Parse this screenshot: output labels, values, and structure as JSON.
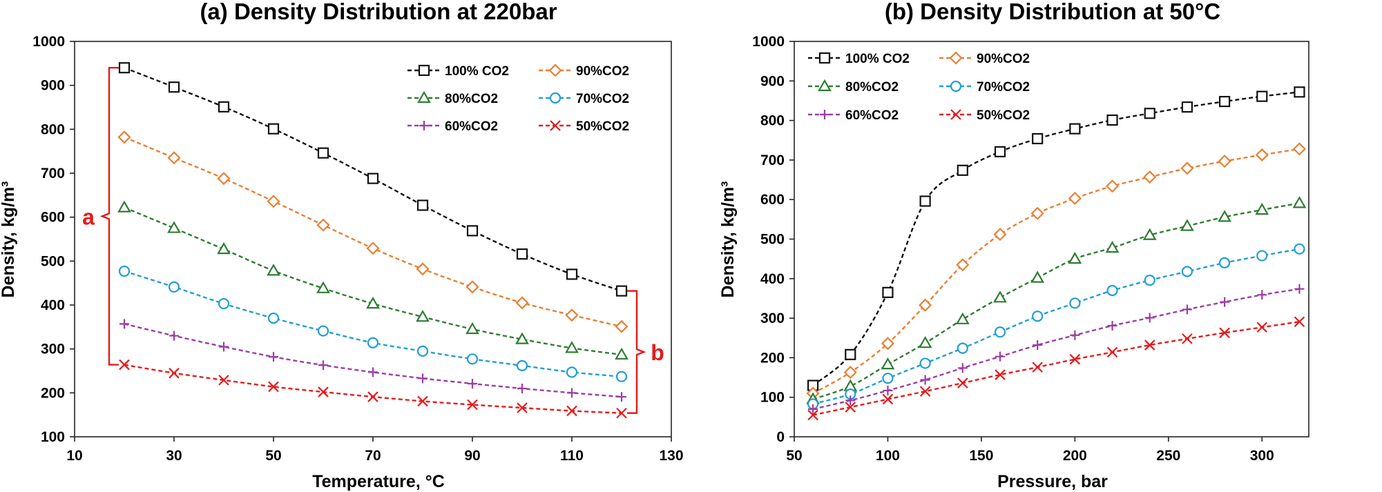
{
  "colors": {
    "100% CO2": "#111111",
    "90%CO2": "#ed7d31",
    "80%CO2": "#2e7d32",
    "70%CO2": "#1f9ed6",
    "60%CO2": "#9c3ca6",
    "50%CO2": "#e8191a",
    "bracket": "#e8191a"
  },
  "chart_data": [
    {
      "type": "line",
      "title": "(a) Density Distribution at 220bar",
      "xlabel": "Temperature, °C",
      "ylabel": "Density, kg/m³",
      "xlim": [
        10,
        130
      ],
      "ylim": [
        100,
        1000
      ],
      "xticks": [
        10,
        30,
        50,
        70,
        90,
        110,
        130
      ],
      "yticks": [
        100,
        200,
        300,
        400,
        500,
        600,
        700,
        800,
        900,
        1000
      ],
      "grid": false,
      "legend": "top-right",
      "x": [
        20,
        30,
        40,
        50,
        60,
        70,
        80,
        90,
        100,
        110,
        120
      ],
      "series": [
        {
          "name": "100% CO2",
          "marker": "square",
          "values": [
            940,
            896,
            851,
            801,
            746,
            688,
            627,
            569,
            516,
            470,
            432
          ]
        },
        {
          "name": "90%CO2",
          "marker": "diamond",
          "values": [
            782,
            735,
            688,
            636,
            582,
            529,
            482,
            441,
            405,
            377,
            351
          ]
        },
        {
          "name": "80%CO2",
          "marker": "triangle",
          "values": [
            622,
            575,
            527,
            478,
            438,
            403,
            373,
            345,
            322,
            302,
            287
          ]
        },
        {
          "name": "70%CO2",
          "marker": "circle",
          "values": [
            477,
            441,
            403,
            370,
            341,
            314,
            295,
            277,
            262,
            247,
            237
          ]
        },
        {
          "name": "60%CO2",
          "marker": "plus",
          "values": [
            357,
            330,
            305,
            282,
            263,
            247,
            233,
            221,
            210,
            200,
            191
          ]
        },
        {
          "name": "50%CO2",
          "marker": "cross",
          "values": [
            264,
            245,
            229,
            214,
            202,
            191,
            181,
            173,
            166,
            159,
            154
          ]
        }
      ],
      "annotations": [
        {
          "text": "a",
          "bracket_x": 20,
          "y_range": [
            264,
            940
          ],
          "side": "left"
        },
        {
          "text": "b",
          "bracket_x": 120,
          "y_range": [
            154,
            432
          ],
          "side": "right"
        }
      ]
    },
    {
      "type": "line",
      "title": "(b) Density Distribution at 50°C",
      "xlabel": "Pressure, bar",
      "ylabel": "Density, kg/m³",
      "xlim": [
        50,
        325
      ],
      "ylim": [
        0,
        1000
      ],
      "xticks": [
        50,
        100,
        150,
        200,
        250,
        300
      ],
      "yticks": [
        0,
        100,
        200,
        300,
        400,
        500,
        600,
        700,
        800,
        900,
        1000
      ],
      "grid": false,
      "legend": "top-left",
      "x": [
        60,
        80,
        100,
        120,
        140,
        160,
        180,
        200,
        220,
        240,
        260,
        280,
        300,
        320
      ],
      "series": [
        {
          "name": "100% CO2",
          "marker": "square",
          "values": [
            130,
            208,
            365,
            596,
            674,
            721,
            754,
            779,
            801,
            818,
            834,
            848,
            861,
            872
          ]
        },
        {
          "name": "90%CO2",
          "marker": "diamond",
          "values": [
            110,
            163,
            236,
            333,
            435,
            512,
            565,
            603,
            634,
            657,
            679,
            697,
            713,
            728
          ]
        },
        {
          "name": "80%CO2",
          "marker": "triangle",
          "values": [
            95,
            128,
            183,
            237,
            297,
            352,
            402,
            450,
            478,
            510,
            533,
            556,
            574,
            591
          ]
        },
        {
          "name": "70%CO2",
          "marker": "circle",
          "values": [
            83,
            108,
            148,
            186,
            224,
            265,
            305,
            338,
            370,
            396,
            418,
            440,
            458,
            475
          ]
        },
        {
          "name": "60%CO2",
          "marker": "plus",
          "values": [
            70,
            92,
            117,
            144,
            174,
            203,
            232,
            257,
            281,
            301,
            322,
            341,
            359,
            374
          ]
        },
        {
          "name": "50%CO2",
          "marker": "cross",
          "values": [
            55,
            75,
            95,
            115,
            136,
            157,
            176,
            196,
            214,
            232,
            248,
            263,
            277,
            291
          ]
        }
      ]
    }
  ]
}
